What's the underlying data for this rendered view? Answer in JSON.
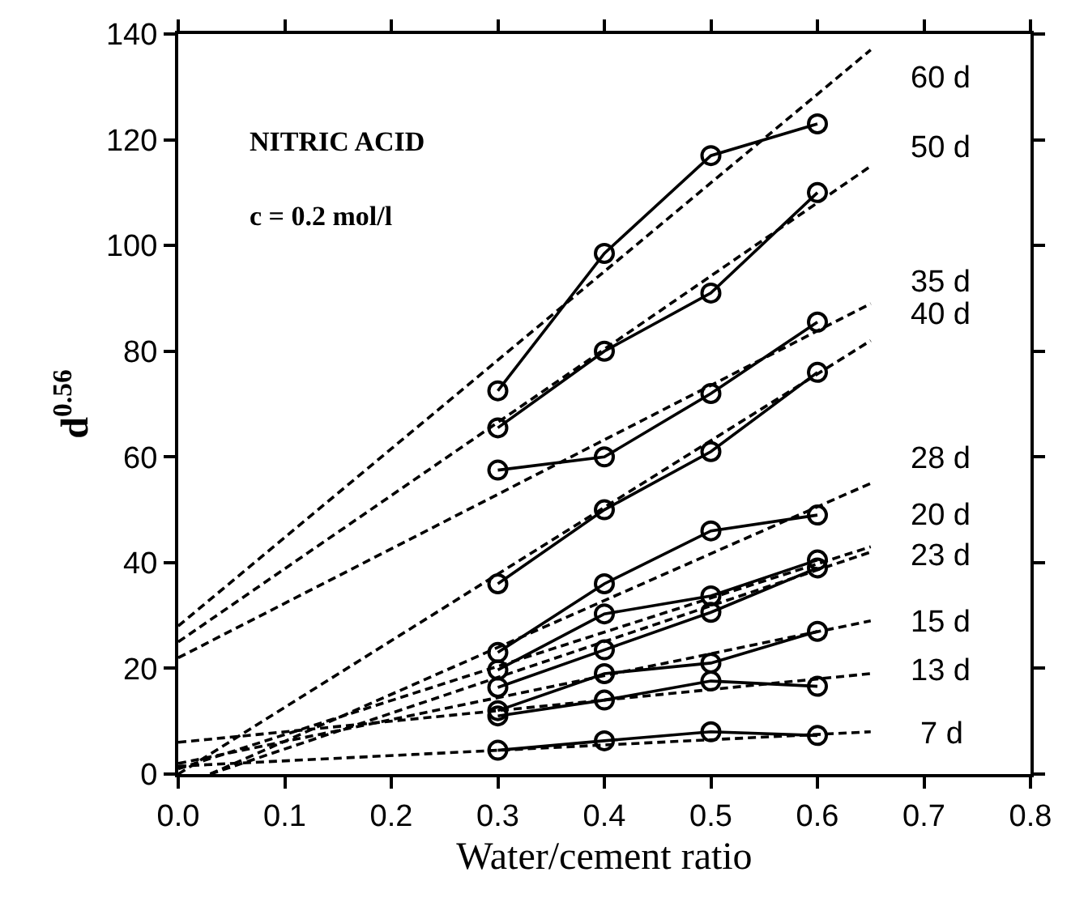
{
  "chart_data": {
    "type": "line",
    "xlabel": "Water/cement ratio",
    "ylabel": "d$^{0.56}$",
    "xlim": [
      0,
      0.8
    ],
    "ylim": [
      0,
      140
    ],
    "xticks": [
      {
        "value": 0,
        "label": "0.0"
      },
      0.1,
      0.2,
      0.3,
      0.4,
      0.5,
      0.6,
      0.7,
      0.8
    ],
    "yticks": [
      0,
      20,
      40,
      60,
      80,
      100,
      120,
      140
    ],
    "legend": false,
    "marker": "circle",
    "line_style": "solid",
    "x": [
      0.3,
      0.4,
      0.5,
      0.6
    ],
    "series": [
      {
        "color": "#000000",
        "values": [
          72.5,
          98.5,
          117,
          123
        ]
      },
      {
        "color": "#000000",
        "values": [
          65.5,
          80,
          91,
          110
        ]
      },
      {
        "color": "#000000",
        "values": [
          57.5,
          60,
          72,
          85.5
        ]
      },
      {
        "color": "#000000",
        "values": [
          36,
          50,
          61,
          76
        ]
      },
      {
        "color": "#000000",
        "values": [
          23,
          36,
          46,
          49
        ]
      },
      {
        "color": "#000000",
        "values": [
          19.7,
          30.3,
          33.7,
          40.5
        ]
      },
      {
        "color": "#000000",
        "values": [
          16.4,
          23.5,
          30.6,
          39
        ]
      },
      {
        "color": "#000000",
        "values": [
          12,
          19,
          21,
          27
        ]
      },
      {
        "color": "#000000",
        "values": [
          11,
          14,
          17.6,
          16.6
        ]
      },
      {
        "color": "#000000",
        "values": [
          4.5,
          6.3,
          8,
          7.3
        ]
      },
      {
        "color": "#000000",
        "x": [
          0,
          0.65
        ],
        "values": [
          28,
          137
        ],
        "marker": "none",
        "line_style": "dashed"
      },
      {
        "color": "#000000",
        "x": [
          0,
          0.65
        ],
        "values": [
          25,
          115
        ],
        "marker": "none",
        "line_style": "dashed"
      },
      {
        "color": "#000000",
        "x": [
          0,
          0.65
        ],
        "values": [
          22,
          89
        ],
        "marker": "none",
        "line_style": "dashed"
      },
      {
        "color": "#000000",
        "x": [
          0,
          0.65
        ],
        "values": [
          0,
          82
        ],
        "marker": "none",
        "line_style": "dashed"
      },
      {
        "color": "#000000",
        "x": [
          0.03,
          0.65
        ],
        "values": [
          0,
          55
        ],
        "marker": "none",
        "line_style": "dashed"
      },
      {
        "color": "#000000",
        "x": [
          0,
          0.65
        ],
        "values": [
          1,
          43
        ],
        "marker": "none",
        "line_style": "dashed"
      },
      {
        "color": "#000000",
        "x": [
          0.03,
          0.65
        ],
        "values": [
          0,
          42
        ],
        "marker": "none",
        "line_style": "dashed"
      },
      {
        "color": "#000000",
        "x": [
          0,
          0.65
        ],
        "values": [
          2,
          29
        ],
        "marker": "none",
        "line_style": "dashed"
      },
      {
        "color": "#000000",
        "x": [
          0,
          0.65
        ],
        "values": [
          6,
          19
        ],
        "marker": "none",
        "line_style": "dashed"
      },
      {
        "color": "#000000",
        "x": [
          0,
          0.65
        ],
        "values": [
          1.5,
          8
        ],
        "marker": "none",
        "line_style": "dashed"
      }
    ],
    "annotations": [
      "NITRIC ACID",
      "c = 0.2 mol/l",
      "60 d",
      "50 d",
      "35 d",
      "40 d",
      "28 d",
      "20 d",
      "23 d",
      "15 d",
      "13 d",
      "7 d"
    ]
  }
}
